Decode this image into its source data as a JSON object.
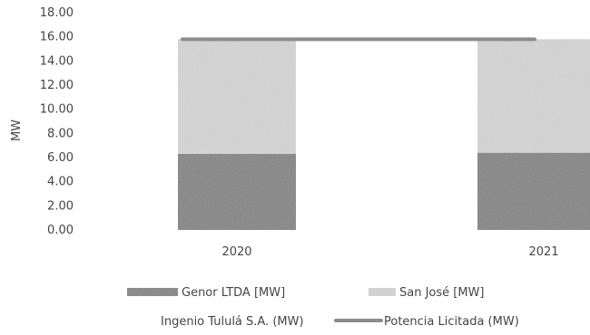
{
  "chart_data": {
    "type": "bar",
    "stacked": true,
    "categories": [
      "2020",
      "2021"
    ],
    "series": [
      {
        "name": "Genor LTDA [MW]",
        "kind": "bar",
        "color": "#7f7f7f",
        "values": [
          6.3,
          6.4
        ]
      },
      {
        "name": "San José [MW]",
        "kind": "bar",
        "color": "#d9d9d9",
        "values": [
          9.5,
          9.4
        ]
      },
      {
        "name": "Ingenio Tululá S.A. (MW)",
        "kind": "bar",
        "color": "#ffffff",
        "values": [
          0,
          0
        ]
      },
      {
        "name": "Potencia Licitada (MW)",
        "kind": "line",
        "color": "#8c8c8c",
        "values": [
          15.8,
          15.8
        ]
      }
    ],
    "ylabel": "MW",
    "ylim": [
      0,
      18
    ],
    "yticks": [
      "0.00",
      "2.00",
      "4.00",
      "6.00",
      "8.00",
      "10.00",
      "12.00",
      "14.00",
      "16.00",
      "18.00"
    ],
    "grid": false,
    "legend": "bottom"
  }
}
